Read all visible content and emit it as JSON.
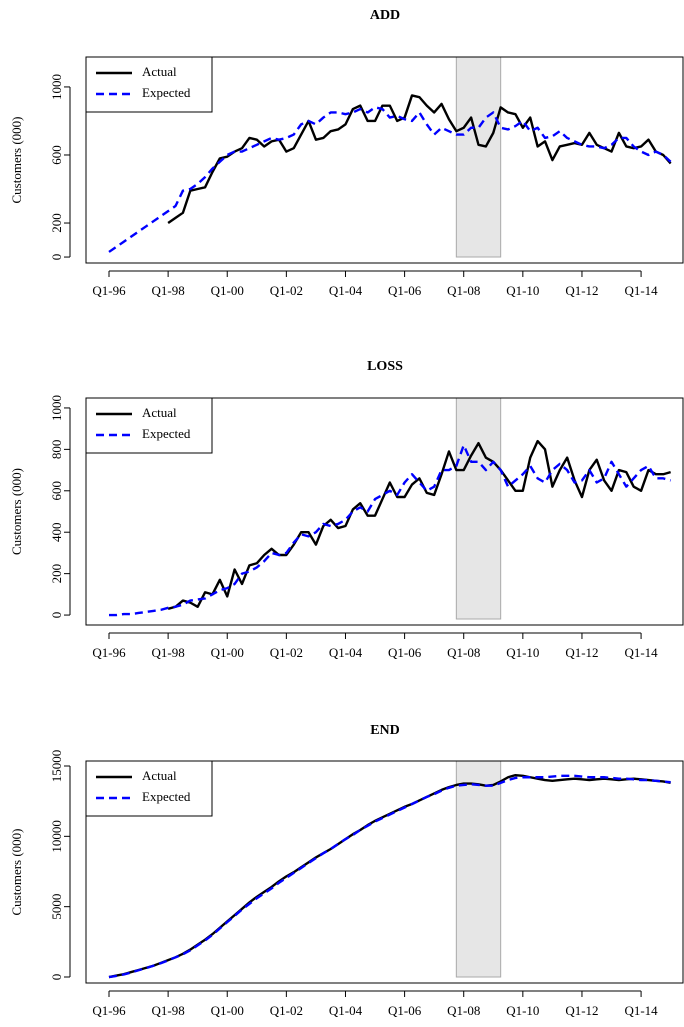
{
  "chart_data": [
    {
      "type": "line",
      "title": "ADD",
      "y_label": "Customers (000)",
      "categories": [
        "Q1-96",
        null,
        null,
        null,
        null,
        null,
        null,
        null,
        "Q1-98",
        null,
        null,
        null,
        null,
        null,
        null,
        null,
        "Q1-00",
        null,
        null,
        null,
        null,
        null,
        null,
        null,
        "Q1-02",
        null,
        null,
        null,
        null,
        null,
        null,
        null,
        "Q1-04",
        null,
        null,
        null,
        null,
        null,
        null,
        null,
        "Q1-06",
        null,
        null,
        null,
        null,
        null,
        null,
        null,
        "Q1-08",
        null,
        null,
        null,
        null,
        null,
        null,
        null,
        "Q1-10",
        null,
        null,
        null,
        null,
        null,
        null,
        null,
        "Q1-12",
        null,
        null,
        null,
        null,
        null,
        null,
        null,
        "Q1-14",
        null,
        null,
        null,
        null
      ],
      "series": [
        {
          "name": "Actual",
          "color": "#000000",
          "dashed": false,
          "values": [
            null,
            null,
            null,
            null,
            null,
            null,
            null,
            null,
            200,
            230,
            260,
            390,
            400,
            410,
            500,
            580,
            590,
            620,
            640,
            700,
            690,
            650,
            680,
            690,
            620,
            640,
            720,
            800,
            690,
            700,
            740,
            750,
            780,
            870,
            890,
            800,
            800,
            890,
            890,
            800,
            820,
            950,
            940,
            890,
            850,
            900,
            810,
            740,
            760,
            820,
            660,
            650,
            730,
            880,
            850,
            840,
            760,
            820,
            650,
            680,
            570,
            650,
            660,
            670,
            660,
            730,
            660,
            640,
            620,
            730,
            650,
            640,
            650,
            690,
            620,
            600,
            550
          ]
        },
        {
          "name": "Expected",
          "color": "#0000ff",
          "dashed": true,
          "values": [
            30,
            60,
            90,
            120,
            150,
            180,
            210,
            240,
            270,
            300,
            390,
            400,
            430,
            470,
            520,
            560,
            600,
            620,
            620,
            640,
            660,
            680,
            700,
            690,
            700,
            720,
            780,
            800,
            780,
            820,
            850,
            850,
            840,
            850,
            870,
            850,
            880,
            870,
            820,
            830,
            810,
            800,
            850,
            780,
            720,
            760,
            740,
            720,
            720,
            760,
            760,
            820,
            850,
            760,
            750,
            770,
            800,
            740,
            760,
            700,
            710,
            740,
            700,
            680,
            660,
            650,
            650,
            640,
            660,
            700,
            700,
            650,
            620,
            600,
            620,
            600,
            560
          ]
        }
      ],
      "ylim": [
        -35,
        1176
      ],
      "yticks": [
        0,
        200,
        600,
        1000
      ],
      "highlight": [
        47,
        53
      ],
      "legend": "top-left"
    },
    {
      "type": "line",
      "title": "LOSS",
      "y_label": "Customers (000)",
      "categories": [
        "Q1-96",
        null,
        null,
        null,
        null,
        null,
        null,
        null,
        "Q1-98",
        null,
        null,
        null,
        null,
        null,
        null,
        null,
        "Q1-00",
        null,
        null,
        null,
        null,
        null,
        null,
        null,
        "Q1-02",
        null,
        null,
        null,
        null,
        null,
        null,
        null,
        "Q1-04",
        null,
        null,
        null,
        null,
        null,
        null,
        null,
        "Q1-06",
        null,
        null,
        null,
        null,
        null,
        null,
        null,
        "Q1-08",
        null,
        null,
        null,
        null,
        null,
        null,
        null,
        "Q1-10",
        null,
        null,
        null,
        null,
        null,
        null,
        null,
        "Q1-12",
        null,
        null,
        null,
        null,
        null,
        null,
        null,
        "Q1-14",
        null,
        null,
        null,
        null
      ],
      "series": [
        {
          "name": "Actual",
          "color": "#000000",
          "dashed": false,
          "values": [
            null,
            null,
            null,
            null,
            null,
            null,
            null,
            null,
            30,
            40,
            70,
            60,
            40,
            110,
            100,
            170,
            90,
            220,
            150,
            240,
            250,
            290,
            320,
            290,
            290,
            340,
            400,
            400,
            340,
            430,
            460,
            420,
            430,
            510,
            540,
            480,
            480,
            560,
            640,
            570,
            570,
            630,
            660,
            590,
            580,
            680,
            790,
            700,
            700,
            770,
            830,
            760,
            740,
            700,
            650,
            600,
            600,
            760,
            840,
            800,
            620,
            700,
            760,
            650,
            570,
            700,
            750,
            650,
            600,
            700,
            690,
            620,
            600,
            700,
            680,
            680,
            690
          ]
        },
        {
          "name": "Expected",
          "color": "#0000ff",
          "dashed": true,
          "values": [
            0,
            0,
            5,
            5,
            10,
            15,
            20,
            25,
            35,
            40,
            50,
            70,
            75,
            80,
            100,
            120,
            130,
            150,
            200,
            210,
            230,
            260,
            300,
            290,
            300,
            350,
            390,
            380,
            400,
            440,
            430,
            440,
            460,
            500,
            520,
            500,
            560,
            580,
            600,
            580,
            640,
            680,
            640,
            600,
            620,
            700,
            700,
            720,
            820,
            740,
            740,
            700,
            740,
            700,
            620,
            650,
            680,
            720,
            660,
            640,
            700,
            730,
            700,
            640,
            650,
            700,
            640,
            660,
            740,
            680,
            620,
            660,
            700,
            720,
            660,
            660,
            650
          ]
        }
      ],
      "ylim": [
        -48,
        1048
      ],
      "yticks": [
        0,
        200,
        400,
        600,
        800,
        1000
      ],
      "highlight": [
        47,
        53
      ],
      "legend": "top-left"
    },
    {
      "type": "line",
      "title": "END",
      "y_label": "Customers (000)",
      "categories": [
        "Q1-96",
        null,
        null,
        null,
        null,
        null,
        null,
        null,
        "Q1-98",
        null,
        null,
        null,
        null,
        null,
        null,
        null,
        "Q1-00",
        null,
        null,
        null,
        null,
        null,
        null,
        null,
        "Q1-02",
        null,
        null,
        null,
        null,
        null,
        null,
        null,
        "Q1-04",
        null,
        null,
        null,
        null,
        null,
        null,
        null,
        "Q1-06",
        null,
        null,
        null,
        null,
        null,
        null,
        null,
        "Q1-08",
        null,
        null,
        null,
        null,
        null,
        null,
        null,
        "Q1-10",
        null,
        null,
        null,
        null,
        null,
        null,
        null,
        "Q1-12",
        null,
        null,
        null,
        null,
        null,
        null,
        null,
        "Q1-14",
        null,
        null,
        null,
        null
      ],
      "series": [
        {
          "name": "Actual",
          "color": "#000000",
          "dashed": false,
          "values": [
            0,
            100,
            200,
            350,
            500,
            650,
            800,
            1000,
            1200,
            1400,
            1650,
            1950,
            2300,
            2650,
            3050,
            3500,
            3950,
            4400,
            4850,
            5300,
            5700,
            6050,
            6400,
            6800,
            7150,
            7450,
            7800,
            8150,
            8500,
            8800,
            9100,
            9450,
            9800,
            10150,
            10450,
            10800,
            11100,
            11350,
            11600,
            11850,
            12100,
            12300,
            12550,
            12800,
            13050,
            13300,
            13500,
            13650,
            13750,
            13750,
            13700,
            13600,
            13650,
            13900,
            14200,
            14350,
            14300,
            14200,
            14100,
            14000,
            13950,
            14000,
            14050,
            14100,
            14050,
            14000,
            14050,
            14100,
            14050,
            14000,
            14050,
            14100,
            14050,
            14000,
            13950,
            13900,
            13800
          ]
        },
        {
          "name": "Expected",
          "color": "#0000ff",
          "dashed": true,
          "values": [
            0,
            80,
            180,
            320,
            480,
            630,
            800,
            980,
            1180,
            1400,
            1620,
            1900,
            2250,
            2600,
            3000,
            3450,
            3900,
            4350,
            4800,
            5200,
            5600,
            5950,
            6300,
            6700,
            7050,
            7400,
            7750,
            8100,
            8450,
            8800,
            9100,
            9450,
            9800,
            10100,
            10450,
            10750,
            11050,
            11300,
            11550,
            11800,
            12050,
            12300,
            12550,
            12800,
            13000,
            13250,
            13450,
            13600,
            13650,
            13700,
            13650,
            13600,
            13600,
            13800,
            14000,
            14150,
            14200,
            14200,
            14200,
            14200,
            14250,
            14300,
            14300,
            14300,
            14250,
            14200,
            14200,
            14200,
            14150,
            14100,
            14100,
            14050,
            14000,
            14000,
            13950,
            13900,
            13850
          ]
        }
      ],
      "ylim": [
        -426,
        15355
      ],
      "yticks": [
        0,
        5000,
        10000,
        15000
      ],
      "highlight": [
        47,
        53
      ],
      "legend": "top-left"
    }
  ]
}
